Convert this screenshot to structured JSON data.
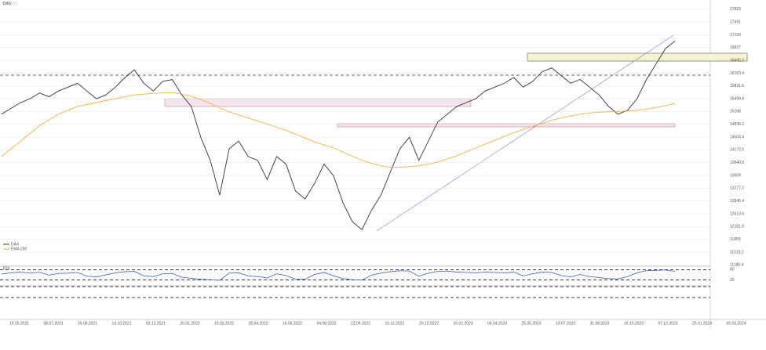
{
  "chart_data": {
    "type": "line",
    "title": "DAX",
    "ylim": [
      11050,
      17900
    ],
    "yticks": [
      17823.0,
      17491.0,
      17159.0,
      16827.0,
      16495.2,
      16163.4,
      15831.6,
      15499.8,
      15168.0,
      14836.2,
      14504.4,
      14172.6,
      13840.8,
      13509.0,
      13177.2,
      12845.4,
      12513.6,
      12181.8,
      11850.0,
      11518.2,
      11186.4
    ],
    "grid": true,
    "x_labels": [
      "19.05.2021",
      "08.07.2021",
      "26.08.2021",
      "14.10.2021",
      "02.12.2021",
      "20.01.2022",
      "10.03.2022",
      "28.04.2022",
      "16.06.2022",
      "04.08.2022",
      "22.09.2022",
      "10.11.2022",
      "29.12.2022",
      "16.02.2023",
      "06.04.2023",
      "25.05.2023",
      "13.07.2023",
      "31.08.2023",
      "19.10.2023",
      "07.12.2023",
      "25.01.2024",
      "05.03.2024"
    ],
    "series": [
      {
        "name": "DAX",
        "color": "#333333",
        "values": [
          15100,
          15250,
          15400,
          15500,
          15650,
          15550,
          15700,
          15800,
          15900,
          15700,
          15500,
          15600,
          15800,
          16050,
          16250,
          15900,
          15700,
          15950,
          16000,
          15600,
          15300,
          14500,
          13900,
          13000,
          14200,
          14400,
          14000,
          13900,
          13400,
          14000,
          13800,
          13100,
          12900,
          13300,
          13800,
          13500,
          12800,
          12300,
          12100,
          12600,
          13000,
          13600,
          14200,
          14500,
          13900,
          14400,
          14900,
          15100,
          15300,
          15400,
          15500,
          15700,
          15800,
          15900,
          16050,
          15800,
          15950,
          16200,
          16300,
          16100,
          15900,
          16000,
          15800,
          15600,
          15300,
          15100,
          15200,
          15500,
          16000,
          16400,
          16800,
          17000
        ]
      },
      {
        "name": "EMA 200",
        "color": "#f0b040",
        "values": [
          14000,
          14200,
          14400,
          14600,
          14800,
          14950,
          15100,
          15200,
          15300,
          15350,
          15400,
          15450,
          15500,
          15550,
          15600,
          15620,
          15640,
          15650,
          15660,
          15620,
          15560,
          15480,
          15380,
          15260,
          15160,
          15080,
          15000,
          14920,
          14840,
          14760,
          14680,
          14580,
          14480,
          14380,
          14300,
          14220,
          14120,
          14000,
          13900,
          13820,
          13760,
          13720,
          13720,
          13740,
          13760,
          13800,
          13860,
          13940,
          14020,
          14120,
          14220,
          14320,
          14420,
          14520,
          14620,
          14700,
          14780,
          14860,
          14940,
          15000,
          15050,
          15100,
          15130,
          15150,
          15160,
          15170,
          15180,
          15200,
          15230,
          15270,
          15320,
          15380
        ]
      }
    ],
    "rsi": {
      "name": "RSI",
      "color": "#4a6fc4",
      "ylim": [
        0,
        100
      ],
      "yticks": [
        80,
        20
      ],
      "values": [
        55,
        62,
        66,
        60,
        65,
        48,
        58,
        60,
        63,
        42,
        38,
        50,
        62,
        68,
        70,
        44,
        40,
        56,
        58,
        36,
        30,
        24,
        22,
        18,
        60,
        62,
        44,
        40,
        32,
        56,
        46,
        26,
        24,
        52,
        64,
        44,
        28,
        22,
        20,
        48,
        60,
        68,
        74,
        72,
        42,
        60,
        70,
        72,
        66,
        64,
        62,
        66,
        64,
        62,
        66,
        44,
        56,
        66,
        64,
        46,
        38,
        52,
        40,
        34,
        28,
        26,
        40,
        62,
        74,
        76,
        78,
        70
      ]
    }
  }
}
